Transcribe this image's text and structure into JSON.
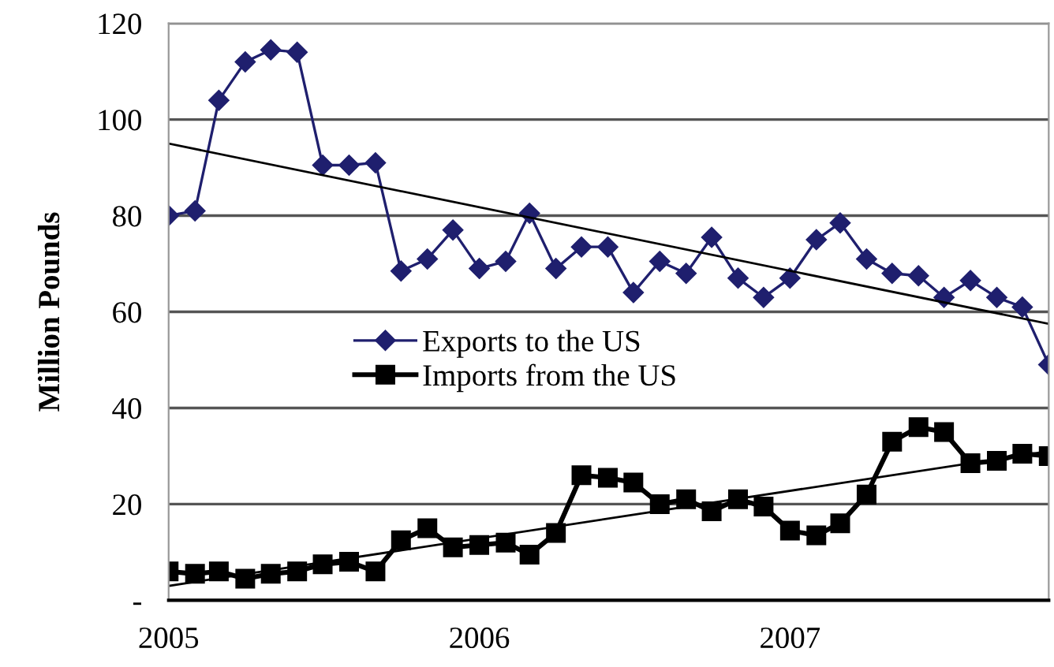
{
  "chart_data": {
    "type": "line",
    "ylabel": "Million Pounds",
    "x": [
      "2005-01",
      "2005-02",
      "2005-03",
      "2005-04",
      "2005-05",
      "2005-06",
      "2005-07",
      "2005-08",
      "2005-09",
      "2005-10",
      "2005-11",
      "2005-12",
      "2006-01",
      "2006-02",
      "2006-03",
      "2006-04",
      "2006-05",
      "2006-06",
      "2006-07",
      "2006-08",
      "2006-09",
      "2006-10",
      "2006-11",
      "2006-12",
      "2007-01",
      "2007-02",
      "2007-03",
      "2007-04",
      "2007-05",
      "2007-06",
      "2007-07",
      "2007-08",
      "2007-09",
      "2007-10",
      "2007-11"
    ],
    "series": [
      {
        "name": "Exports to the US",
        "color": "#1f1f6e",
        "marker": "diamond",
        "values": [
          80,
          81,
          104,
          112,
          114.5,
          114,
          90.5,
          90.5,
          91,
          68.5,
          71,
          77,
          69,
          70.5,
          80.5,
          69,
          73.5,
          73.5,
          64,
          70.5,
          68,
          75.5,
          67,
          63,
          67,
          75,
          78.5,
          71,
          68,
          67.5,
          63,
          66.5,
          63,
          61,
          49
        ]
      },
      {
        "name": "Imports from the US",
        "color": "#000000",
        "marker": "square",
        "values": [
          6,
          5.5,
          6,
          4.5,
          5.5,
          6,
          7.5,
          8,
          6,
          12.5,
          15,
          11,
          11.5,
          12,
          9.5,
          14,
          26,
          25.5,
          24.5,
          20,
          21,
          18.5,
          21,
          19.5,
          14.5,
          13.5,
          16,
          22,
          33,
          36,
          35,
          28.5,
          29,
          30.5,
          30
        ]
      },
      {
        "color": "#000000",
        "marker": "none",
        "x": [
          "2005-01",
          "2007-11"
        ],
        "values": [
          95,
          57.5
        ]
      },
      {
        "color": "#000000",
        "marker": "none",
        "x": [
          "2005-01",
          "2007-11"
        ],
        "values": [
          3,
          31
        ]
      }
    ],
    "xlim": [
      "2005-01",
      "2007-11"
    ],
    "xticks": [
      "2005",
      "2006",
      "2007"
    ],
    "ylim": [
      0,
      120
    ],
    "yticks": [
      {
        "value": 0,
        "label": "-"
      },
      20,
      40,
      60,
      80,
      100,
      120
    ],
    "grid": "y",
    "legend": "left"
  }
}
